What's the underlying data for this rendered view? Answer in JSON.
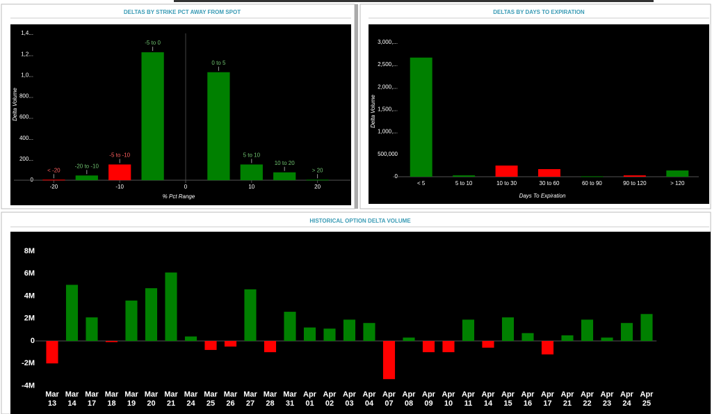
{
  "chart_data": [
    {
      "type": "bar",
      "title": "DELTAS BY STRIKE PCT AWAY FROM SPOT",
      "x": [
        -20,
        -15,
        -10,
        -5,
        5,
        10,
        15,
        20
      ],
      "categories": [
        "< -20",
        "-20 to -10",
        "-5 to -10",
        "-5 to 0",
        "0 to 5",
        "5 to 10",
        "10 to 20",
        "> 20"
      ],
      "values": [
        5,
        45,
        150,
        1220,
        1030,
        150,
        75,
        5
      ],
      "colors": [
        "#ff0000",
        "#008000",
        "#ff0000",
        "#008000",
        "#008000",
        "#008000",
        "#008000",
        "#008000"
      ],
      "xlim": [
        -25,
        25
      ],
      "xticks": [
        -20,
        -10,
        0,
        10,
        20
      ],
      "ylim": [
        0,
        1400
      ],
      "yticks": [
        0,
        {
          "value": 200,
          "label": "200..."
        },
        {
          "value": 400,
          "label": "400..."
        },
        {
          "value": 600,
          "label": "600..."
        },
        {
          "value": 800,
          "label": "800..."
        },
        {
          "value": 1000,
          "label": "1,0..."
        },
        {
          "value": 1200,
          "label": "1,2..."
        },
        {
          "value": 1400,
          "label": "1,4..."
        }
      ],
      "xlabel": "% Pct Range",
      "ylabel": "Delta Volume"
    },
    {
      "type": "bar",
      "title": "DELTAS BY DAYS TO EXPIRATION",
      "categories": [
        "< 5",
        "5 to 10",
        "10 to 30",
        "30 to 60",
        "60 to 90",
        "90 to 120",
        "> 120"
      ],
      "values": [
        2660000,
        30000,
        250000,
        170000,
        10000,
        30000,
        140000
      ],
      "colors": [
        "#008000",
        "#008000",
        "#ff0000",
        "#ff0000",
        "#008000",
        "#ff0000",
        "#008000"
      ],
      "ylim": [
        0,
        3200000
      ],
      "yticks": [
        0,
        {
          "value": 500000,
          "label": "500,000"
        },
        {
          "value": 1000000,
          "label": "1,000,..."
        },
        {
          "value": 1500000,
          "label": "1,500,..."
        },
        {
          "value": 2000000,
          "label": "2,000,..."
        },
        {
          "value": 2500000,
          "label": "2,500,..."
        },
        {
          "value": 3000000,
          "label": "3,000,..."
        }
      ],
      "xlabel": "Days To Expiration",
      "ylabel": "Delta Volume"
    },
    {
      "type": "bar",
      "title": "HISTORICAL OPTION DELTA VOLUME",
      "categories": [
        "Mar 13",
        "Mar 14",
        "Mar 17",
        "Mar 18",
        "Mar 19",
        "Mar 20",
        "Mar 21",
        "Mar 24",
        "Mar 25",
        "Mar 26",
        "Mar 27",
        "Mar 28",
        "Mar 31",
        "Apr 01",
        "Apr 02",
        "Apr 03",
        "Apr 04",
        "Apr 07",
        "Apr 08",
        "Apr 09",
        "Apr 10",
        "Apr 11",
        "Apr 14",
        "Apr 15",
        "Apr 16",
        "Apr 17",
        "Apr 21",
        "Apr 22",
        "Apr 23",
        "Apr 24",
        "Apr 25"
      ],
      "values": [
        -2.0,
        5.0,
        2.1,
        -0.1,
        3.6,
        4.7,
        6.1,
        0.4,
        -0.8,
        -0.5,
        4.6,
        -1.0,
        2.6,
        1.2,
        1.1,
        1.9,
        1.6,
        -3.4,
        0.3,
        -1.0,
        -1.0,
        1.9,
        -0.6,
        2.1,
        0.7,
        -1.2,
        0.5,
        1.9,
        0.3,
        1.6,
        2.4
      ],
      "positive_color": "#008000",
      "negative_color": "#ff0000",
      "ylim": [
        -4.4,
        9.3
      ],
      "yticks": [
        {
          "value": -4,
          "label": "-4M"
        },
        {
          "value": -2,
          "label": "-2M"
        },
        0,
        {
          "value": 2,
          "label": "2M"
        },
        {
          "value": 4,
          "label": "4M"
        },
        {
          "value": 6,
          "label": "6M"
        },
        {
          "value": 8,
          "label": "8M"
        }
      ]
    }
  ]
}
